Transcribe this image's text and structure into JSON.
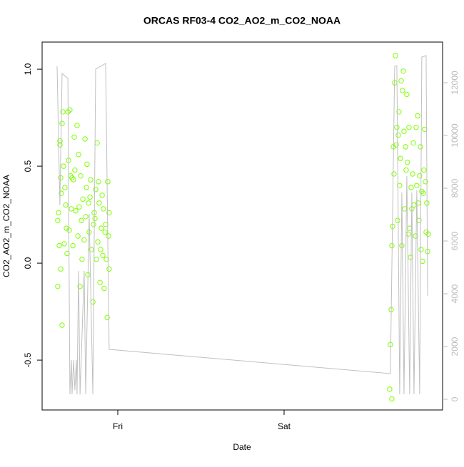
{
  "chart_data": {
    "type": "scatter",
    "title": "ORCAS RF03-4 CO2_AO2_m_CO2_NOAA",
    "x_label": "Date",
    "y_label": "CO2_AO2_m_CO2_NOAA",
    "xlim": [
      0.545,
      2.953
    ],
    "xticks": [
      {
        "value": 1,
        "label": "Fri"
      },
      {
        "value": 2,
        "label": "Sat"
      }
    ],
    "ylim": [
      -0.757,
      1.14
    ],
    "yticks": [
      {
        "value": -0.5,
        "label": "-0.5"
      },
      {
        "value": 0,
        "label": "0.0"
      },
      0.5,
      {
        "value": 1,
        "label": "1.0"
      }
    ],
    "y2lim": [
      -405,
      13540
    ],
    "y2ticks": [
      0,
      2000,
      4000,
      6000,
      8000,
      10000,
      12000
    ],
    "series": [
      {
        "type": "scatter",
        "color": "#7fff00",
        "x": [
          0.639,
          0.639,
          0.644,
          0.648,
          0.652,
          0.652,
          0.657,
          0.657,
          0.661,
          0.665,
          0.665,
          0.67,
          0.674,
          0.678,
          0.682,
          0.687,
          0.691,
          0.695,
          0.7,
          0.704,
          0.708,
          0.712,
          0.717,
          0.721,
          0.725,
          0.73,
          0.734,
          0.738,
          0.742,
          0.747,
          0.755,
          0.76,
          0.764,
          0.768,
          0.773,
          0.777,
          0.781,
          0.785,
          0.79,
          0.798,
          0.803,
          0.807,
          0.811,
          0.815,
          0.82,
          0.824,
          0.828,
          0.833,
          0.837,
          0.841,
          0.85,
          0.854,
          0.858,
          0.863,
          0.867,
          0.871,
          0.876,
          0.88,
          0.884,
          0.888,
          0.893,
          0.897,
          0.901,
          0.906,
          0.91,
          0.914,
          0.918,
          0.923,
          0.927,
          0.931,
          0.936,
          0.94,
          0.944,
          0.948,
          0.948,
          2.635,
          2.639,
          2.644,
          2.648,
          2.648,
          2.652,
          2.657,
          2.661,
          2.665,
          2.67,
          2.674,
          2.678,
          2.682,
          2.687,
          2.691,
          2.695,
          2.7,
          2.704,
          2.708,
          2.712,
          2.717,
          2.721,
          2.725,
          2.73,
          2.734,
          2.738,
          2.742,
          2.747,
          2.751,
          2.755,
          2.76,
          2.764,
          2.768,
          2.773,
          2.777,
          2.781,
          2.79,
          2.794,
          2.798,
          2.803,
          2.807,
          2.811,
          2.815,
          2.82,
          2.824,
          2.828,
          2.833,
          2.837,
          2.841,
          2.845,
          2.85,
          2.854,
          2.858,
          2.863,
          2.867
        ],
        "values": [
          0.22,
          -0.12,
          0.26,
          0.09,
          0.61,
          0.63,
          0.44,
          -0.03,
          0.36,
          -0.32,
          0.72,
          0.78,
          0.5,
          0.1,
          0.39,
          0.3,
          0.18,
          0.05,
          0.78,
          0.53,
          0.17,
          0.79,
          0.45,
          0.28,
          0.44,
          0.09,
          0.43,
          0.65,
          0.48,
          0.27,
          0.71,
          0.14,
          0.56,
          0.29,
          -0.12,
          0.45,
          0.22,
          0.02,
          0.33,
          0.12,
          0.64,
          0.24,
          0.39,
          0.51,
          -0.06,
          0.31,
          0.16,
          0.34,
          0.43,
          0.07,
          -0.2,
          0.2,
          0.26,
          0.23,
          0.38,
          0.02,
          0.62,
          0.11,
          0.42,
          0.31,
          -0.1,
          0.07,
          0.18,
          0.35,
          0.04,
          0.28,
          -0.13,
          0.16,
          0.2,
          0.02,
          -0.28,
          0.42,
          0.14,
          0.26,
          -0.03,
          -0.65,
          -0.42,
          -0.24,
          -0.7,
          0.09,
          0.19,
          0.6,
          0.46,
          0.93,
          1.07,
          0.61,
          0.7,
          0.22,
          0.66,
          0.78,
          0.4,
          0.54,
          0.94,
          0.09,
          0.89,
          0.99,
          0.68,
          0.28,
          0.6,
          0.48,
          0.87,
          0.52,
          0.15,
          0.7,
          0.18,
          0.03,
          0.39,
          0.28,
          0.46,
          0.62,
          0.3,
          0.14,
          0.7,
          0.4,
          0.76,
          0.31,
          0.22,
          0.45,
          0.6,
          0.07,
          0.37,
          0.01,
          0.36,
          0.48,
          0.69,
          0.42,
          0.16,
          0.31,
          0.06,
          0.15
        ]
      },
      {
        "type": "line",
        "axis": "y2",
        "color": "#c0c0c0",
        "x": [
          0.635,
          0.652,
          0.665,
          0.7,
          0.712,
          0.721,
          0.725,
          0.734,
          0.742,
          0.751,
          0.755,
          0.764,
          0.773,
          0.798,
          0.807,
          0.828,
          0.85,
          0.867,
          0.927,
          0.948,
          2.639,
          2.665,
          2.678,
          2.695,
          2.708,
          2.721,
          2.738,
          2.755,
          2.768,
          2.781,
          2.798,
          2.815,
          2.828,
          2.854,
          2.863
        ],
        "values": [
          12622,
          7352,
          12352,
          12162,
          189,
          1486,
          189,
          1486,
          351,
          1486,
          189,
          4865,
          189,
          4865,
          189,
          7027,
          189,
          12514,
          12730,
          1892,
          973,
          12622,
          12649,
          189,
          7838,
          189,
          8460,
          189,
          7838,
          189,
          7919,
          189,
          12973,
          13027,
          3919
        ]
      }
    ]
  }
}
